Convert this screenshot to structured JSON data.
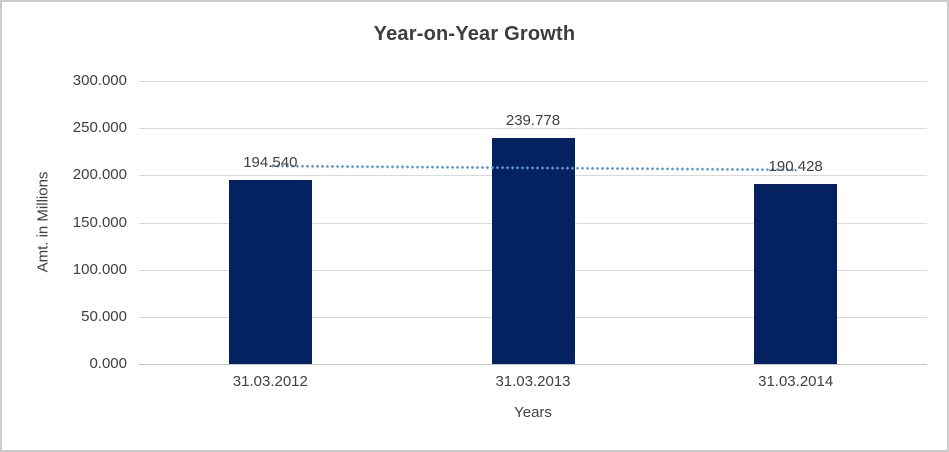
{
  "chart_data": {
    "type": "bar",
    "title": "Year-on-Year Growth",
    "xlabel": "Years",
    "ylabel": "Amt. in Millions",
    "categories": [
      "31.03.2012",
      "31.03.2013",
      "31.03.2014"
    ],
    "values": [
      194.54,
      239.778,
      190.428
    ],
    "value_labels": [
      "194.540",
      "239.778",
      "190.428"
    ],
    "ylim": [
      0,
      300
    ],
    "yticks": [
      {
        "value": 0,
        "label": "0.000"
      },
      {
        "value": 50,
        "label": "50.000"
      },
      {
        "value": 100,
        "label": "100.000"
      },
      {
        "value": 150,
        "label": "150.000"
      },
      {
        "value": 200,
        "label": "200.000"
      },
      {
        "value": 250,
        "label": "250.000"
      },
      {
        "value": 300,
        "label": "300.000"
      }
    ],
    "grid": "horizontal",
    "legend": "none",
    "bar_color": "#042260",
    "trendline": {
      "type": "linear",
      "style": "dotted",
      "color": "#5B9BD5",
      "start_value": 210.3,
      "end_value": 206.2
    }
  }
}
